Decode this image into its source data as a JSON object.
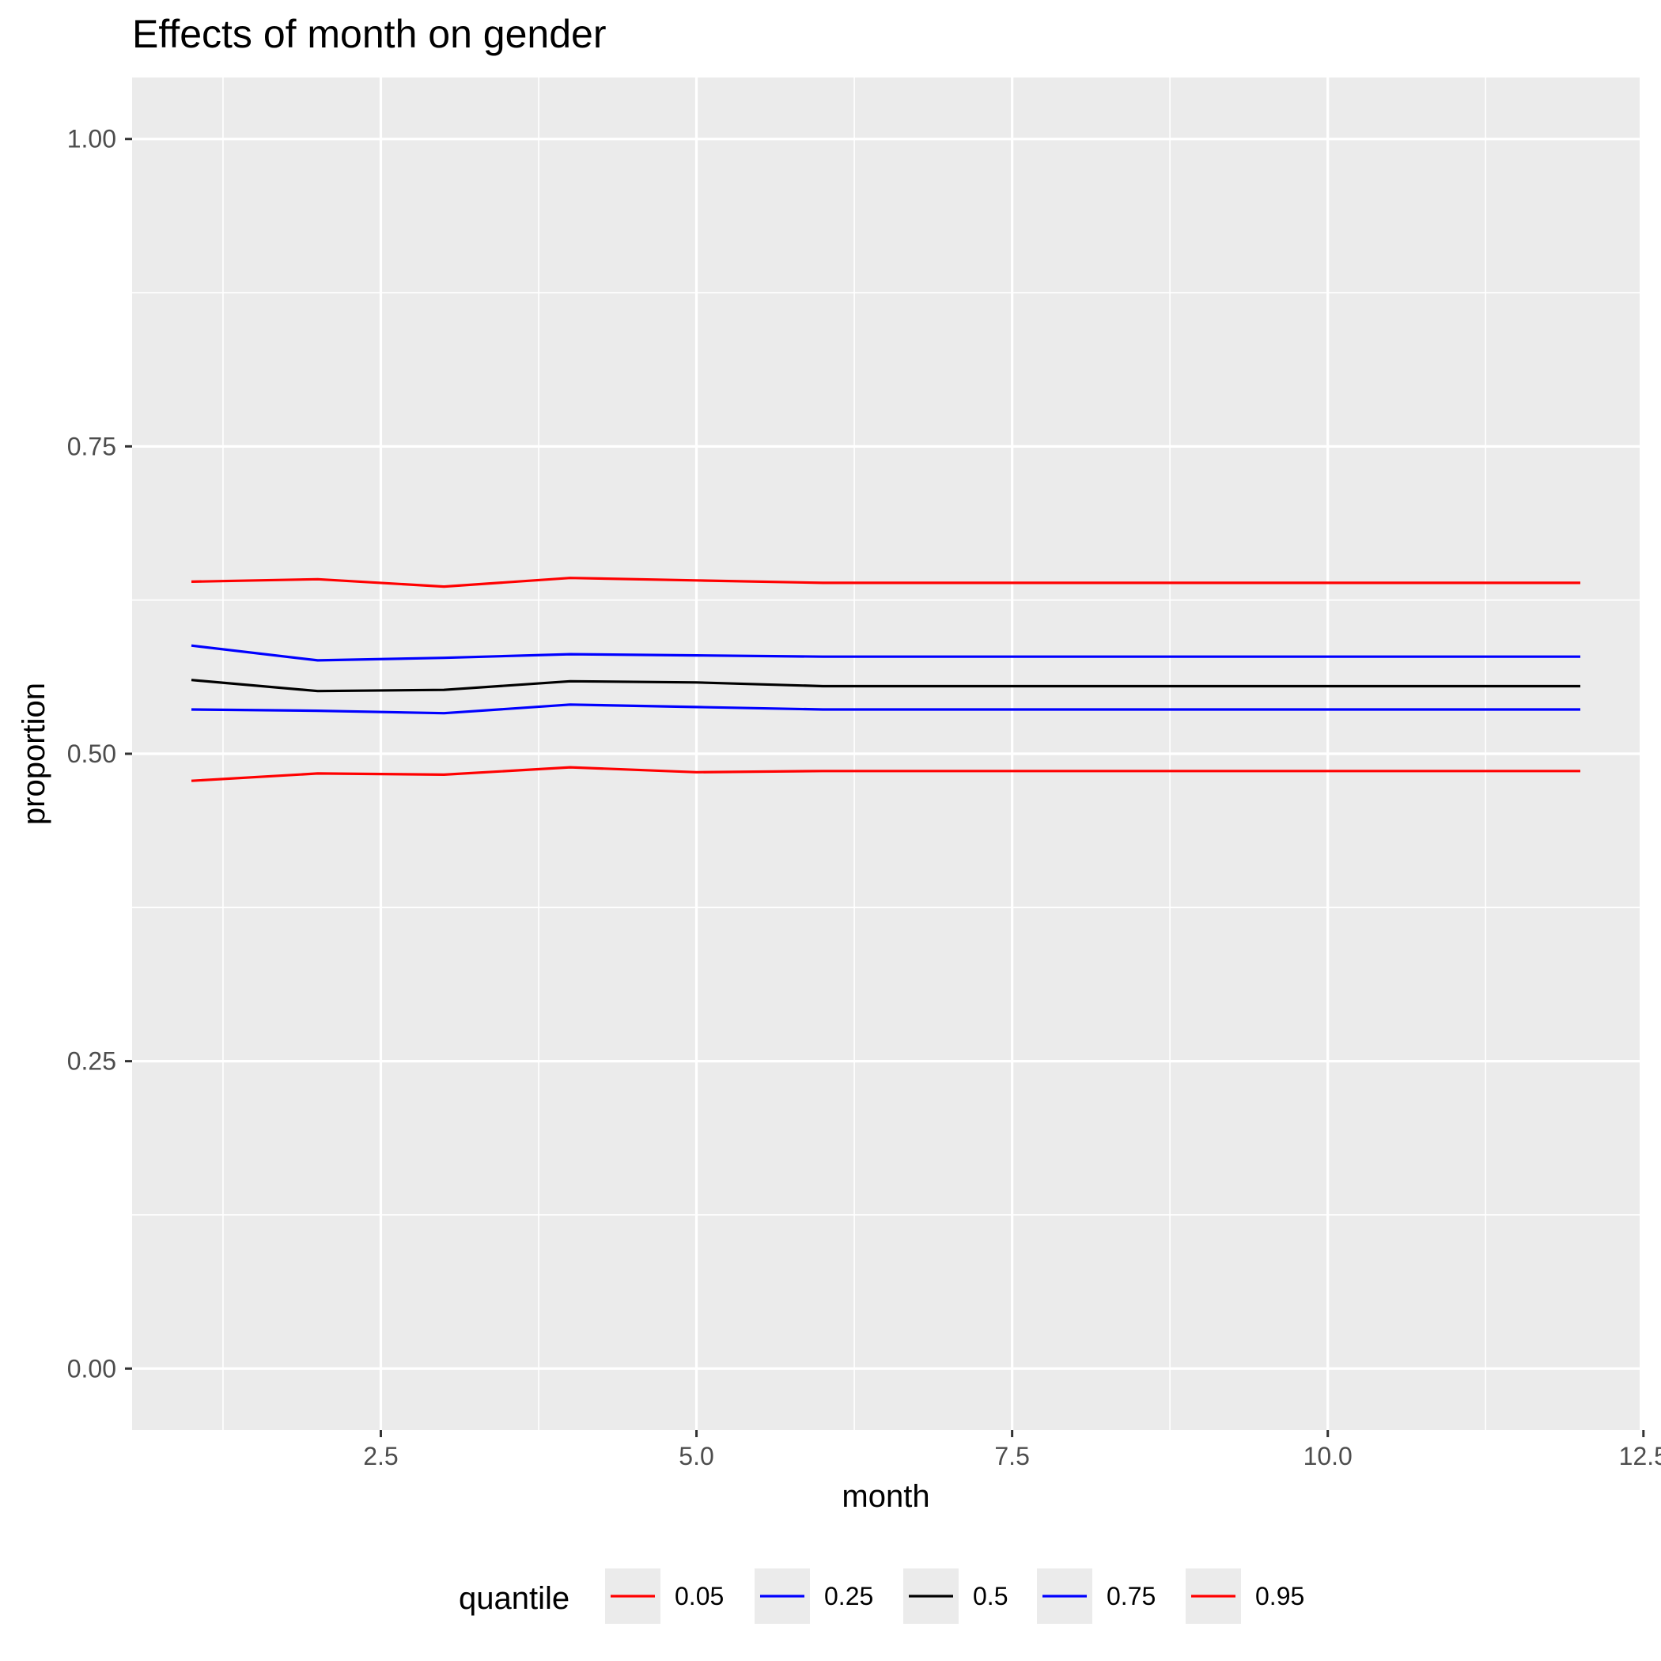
{
  "chart_data": {
    "type": "line",
    "title": "Effects of month on gender",
    "xlabel": "month",
    "ylabel": "proportion",
    "xlim": [
      0.53,
      12.47
    ],
    "ylim": [
      -0.05,
      1.05
    ],
    "x_ticks": [
      2.5,
      5.0,
      7.5,
      10.0,
      12.5
    ],
    "x_tick_labels": [
      "2.5",
      "5.0",
      "7.5",
      "10.0",
      "12.5"
    ],
    "y_ticks": [
      0.0,
      0.25,
      0.5,
      0.75,
      1.0
    ],
    "y_tick_labels": [
      "0.00",
      "0.25",
      "0.50",
      "0.75",
      "1.00"
    ],
    "grid": true,
    "legend": {
      "title": "quantile",
      "position": "bottom"
    },
    "x": [
      1,
      2,
      3,
      4,
      5,
      6,
      7,
      8,
      9,
      10,
      11,
      12
    ],
    "series": [
      {
        "name": "0.05",
        "color": "#ff0000",
        "values": [
          0.478,
          0.484,
          0.483,
          0.489,
          0.485,
          0.486,
          0.486,
          0.486,
          0.486,
          0.486,
          0.486,
          0.486
        ]
      },
      {
        "name": "0.25",
        "color": "#0000ff",
        "values": [
          0.536,
          0.535,
          0.533,
          0.54,
          0.538,
          0.536,
          0.536,
          0.536,
          0.536,
          0.536,
          0.536,
          0.536
        ]
      },
      {
        "name": "0.5",
        "color": "#000000",
        "values": [
          0.56,
          0.551,
          0.552,
          0.559,
          0.558,
          0.555,
          0.555,
          0.555,
          0.555,
          0.555,
          0.555,
          0.555
        ]
      },
      {
        "name": "0.75",
        "color": "#0000ff",
        "values": [
          0.588,
          0.576,
          0.578,
          0.581,
          0.58,
          0.579,
          0.579,
          0.579,
          0.579,
          0.579,
          0.579,
          0.579
        ]
      },
      {
        "name": "0.95",
        "color": "#ff0000",
        "values": [
          0.64,
          0.642,
          0.636,
          0.643,
          0.641,
          0.639,
          0.639,
          0.639,
          0.639,
          0.639,
          0.639,
          0.639
        ]
      }
    ]
  }
}
